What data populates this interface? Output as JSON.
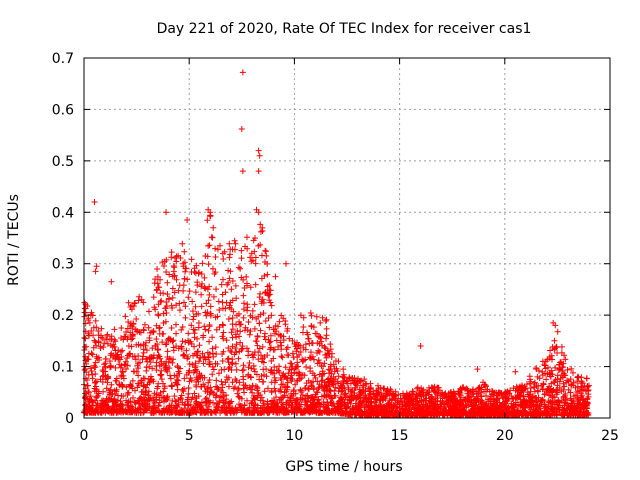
{
  "chart_data": {
    "type": "scatter",
    "title": "Day 221 of 2020, Rate Of TEC Index for receiver cas1",
    "xlabel": "GPS time / hours",
    "ylabel": "ROTI / TECUs",
    "xlim": [
      0,
      25
    ],
    "ylim": [
      0,
      0.7
    ],
    "x_ticks": [
      0,
      5,
      10,
      15,
      20,
      25
    ],
    "y_ticks": [
      0,
      0.1,
      0.2,
      0.3,
      0.4,
      0.5,
      0.6,
      0.7
    ],
    "grid": true,
    "marker": "+",
    "color": "#ff0000",
    "outliers": [
      {
        "x": 0.5,
        "y": 0.42
      },
      {
        "x": 0.6,
        "y": 0.295
      },
      {
        "x": 0.55,
        "y": 0.285
      },
      {
        "x": 1.3,
        "y": 0.265
      },
      {
        "x": 3.9,
        "y": 0.4
      },
      {
        "x": 4.9,
        "y": 0.385
      },
      {
        "x": 5.9,
        "y": 0.405
      },
      {
        "x": 6.0,
        "y": 0.4
      },
      {
        "x": 7.55,
        "y": 0.672
      },
      {
        "x": 7.5,
        "y": 0.562
      },
      {
        "x": 7.55,
        "y": 0.48
      },
      {
        "x": 8.3,
        "y": 0.52
      },
      {
        "x": 8.35,
        "y": 0.51
      },
      {
        "x": 8.3,
        "y": 0.48
      },
      {
        "x": 8.2,
        "y": 0.405
      },
      {
        "x": 8.3,
        "y": 0.4
      },
      {
        "x": 9.6,
        "y": 0.3
      },
      {
        "x": 9.1,
        "y": 0.275
      },
      {
        "x": 16.0,
        "y": 0.14
      },
      {
        "x": 18.7,
        "y": 0.095
      },
      {
        "x": 22.3,
        "y": 0.185
      },
      {
        "x": 22.4,
        "y": 0.18
      },
      {
        "x": 20.5,
        "y": 0.09
      }
    ],
    "envelope": [
      {
        "x": 0.0,
        "y": 0.23
      },
      {
        "x": 0.5,
        "y": 0.2
      },
      {
        "x": 1.0,
        "y": 0.16
      },
      {
        "x": 1.5,
        "y": 0.17
      },
      {
        "x": 2.0,
        "y": 0.2
      },
      {
        "x": 2.5,
        "y": 0.27
      },
      {
        "x": 3.0,
        "y": 0.2
      },
      {
        "x": 3.5,
        "y": 0.3
      },
      {
        "x": 4.0,
        "y": 0.33
      },
      {
        "x": 4.5,
        "y": 0.35
      },
      {
        "x": 5.0,
        "y": 0.32
      },
      {
        "x": 5.5,
        "y": 0.3
      },
      {
        "x": 6.0,
        "y": 0.4
      },
      {
        "x": 6.5,
        "y": 0.35
      },
      {
        "x": 7.0,
        "y": 0.34
      },
      {
        "x": 7.5,
        "y": 0.37
      },
      {
        "x": 8.0,
        "y": 0.35
      },
      {
        "x": 8.5,
        "y": 0.38
      },
      {
        "x": 9.0,
        "y": 0.2
      },
      {
        "x": 9.5,
        "y": 0.2
      },
      {
        "x": 10.0,
        "y": 0.15
      },
      {
        "x": 10.5,
        "y": 0.22
      },
      {
        "x": 11.0,
        "y": 0.2
      },
      {
        "x": 11.5,
        "y": 0.2
      },
      {
        "x": 12.0,
        "y": 0.12
      },
      {
        "x": 12.5,
        "y": 0.08
      },
      {
        "x": 13.0,
        "y": 0.08
      },
      {
        "x": 13.5,
        "y": 0.07
      },
      {
        "x": 14.0,
        "y": 0.06
      },
      {
        "x": 14.5,
        "y": 0.06
      },
      {
        "x": 15.0,
        "y": 0.05
      },
      {
        "x": 15.5,
        "y": 0.05
      },
      {
        "x": 16.0,
        "y": 0.06
      },
      {
        "x": 16.5,
        "y": 0.06
      },
      {
        "x": 17.0,
        "y": 0.06
      },
      {
        "x": 17.5,
        "y": 0.05
      },
      {
        "x": 18.0,
        "y": 0.06
      },
      {
        "x": 18.5,
        "y": 0.06
      },
      {
        "x": 19.0,
        "y": 0.07
      },
      {
        "x": 19.5,
        "y": 0.05
      },
      {
        "x": 20.0,
        "y": 0.05
      },
      {
        "x": 20.5,
        "y": 0.06
      },
      {
        "x": 21.0,
        "y": 0.07
      },
      {
        "x": 21.5,
        "y": 0.1
      },
      {
        "x": 22.0,
        "y": 0.12
      },
      {
        "x": 22.5,
        "y": 0.17
      },
      {
        "x": 23.0,
        "y": 0.1
      },
      {
        "x": 23.5,
        "y": 0.08
      },
      {
        "x": 24.0,
        "y": 0.08
      }
    ],
    "baseline": [
      {
        "x": 0.0,
        "y": 0.01
      },
      {
        "x": 12.0,
        "y": 0.01
      },
      {
        "x": 13.0,
        "y": 0.005
      },
      {
        "x": 24.0,
        "y": 0.005
      }
    ],
    "x_range_of_data": [
      0,
      24
    ]
  }
}
